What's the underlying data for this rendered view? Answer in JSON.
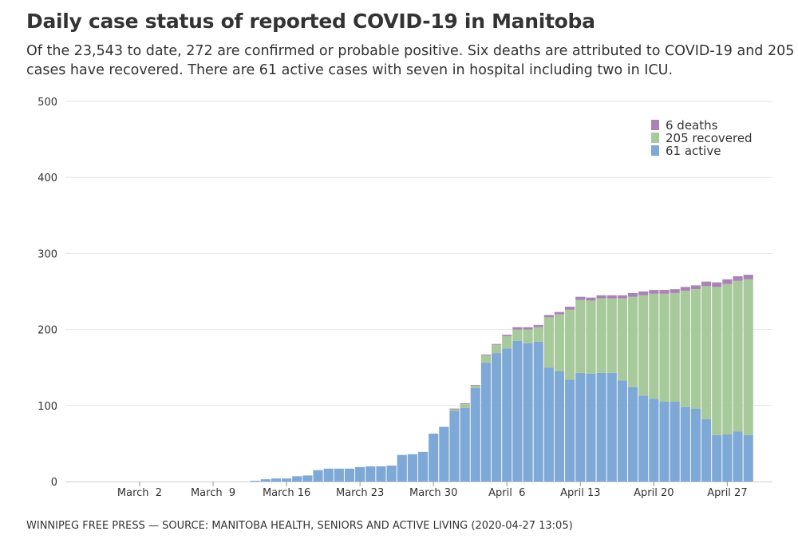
{
  "title": "Daily case status of reported COVID-19 in Manitoba",
  "subtitle": {
    "line1": "Of the 23,543 to date, 272 are confirmed or probable positive. Six deaths are attributed to COVID-19 and 205",
    "line2": "cases have recovered. There are 61 active cases with seven in hospital including two in ICU."
  },
  "footer": "WINNIPEG FREE PRESS — SOURCE: MANITOBA HEALTH, SENIORS AND ACTIVE LIVING (2020-04-27 13:05)",
  "colors": {
    "active": "#7ea9d6",
    "recovered": "#a8c99b",
    "deaths": "#a983b4",
    "grid": "#e6e6e6",
    "axis": "#cccccc"
  },
  "chart_data": {
    "type": "bar",
    "stacked": true,
    "title": "Daily case status of reported COVID-19 in Manitoba",
    "xlabel": "",
    "ylabel": "",
    "ylim": [
      0,
      500
    ],
    "yticks": [
      0,
      100,
      200,
      300,
      400,
      500
    ],
    "grid": true,
    "legend_position": "top-right",
    "start_date": "2020-02-25",
    "x_tick_labels": [
      {
        "label": "March  2",
        "day_index": 6
      },
      {
        "label": "March  9",
        "day_index": 13
      },
      {
        "label": "March 16",
        "day_index": 20
      },
      {
        "label": "March 23",
        "day_index": 27
      },
      {
        "label": "March 30",
        "day_index": 34
      },
      {
        "label": "April  6",
        "day_index": 41
      },
      {
        "label": "April 13",
        "day_index": 48
      },
      {
        "label": "April 20",
        "day_index": 55
      },
      {
        "label": "April 27",
        "day_index": 62
      }
    ],
    "series": [
      {
        "name": "61 active",
        "key": "active",
        "values": [
          0,
          0,
          0,
          0,
          0,
          0,
          0,
          0,
          0,
          0,
          0,
          0,
          0,
          0,
          0,
          0,
          0,
          1,
          3,
          4,
          4,
          7,
          8,
          15,
          17,
          17,
          17,
          19,
          20,
          20,
          21,
          35,
          36,
          39,
          63,
          72,
          93,
          97,
          123,
          156,
          169,
          175,
          185,
          182,
          184,
          150,
          145,
          134,
          143,
          142,
          143,
          143,
          133,
          124,
          113,
          109,
          105,
          105,
          98,
          96,
          82,
          61,
          62,
          66,
          61
        ]
      },
      {
        "name": "205 recovered",
        "key": "recovered",
        "values": [
          0,
          0,
          0,
          0,
          0,
          0,
          0,
          0,
          0,
          0,
          0,
          0,
          0,
          0,
          0,
          0,
          0,
          0,
          0,
          0,
          0,
          0,
          0,
          0,
          0,
          0,
          0,
          0,
          0,
          0,
          0,
          0,
          0,
          0,
          0,
          0,
          2,
          5,
          3,
          10,
          11,
          16,
          15,
          18,
          19,
          66,
          75,
          92,
          96,
          96,
          98,
          98,
          108,
          119,
          132,
          138,
          142,
          143,
          153,
          157,
          175,
          195,
          198,
          198,
          205
        ]
      },
      {
        "name": "6 deaths",
        "key": "deaths",
        "values": [
          0,
          0,
          0,
          0,
          0,
          0,
          0,
          0,
          0,
          0,
          0,
          0,
          0,
          0,
          0,
          0,
          0,
          0,
          0,
          0,
          0,
          0,
          0,
          0,
          0,
          0,
          0,
          0,
          0,
          0,
          0,
          0,
          0,
          0,
          0,
          0,
          1,
          1,
          1,
          1,
          1,
          2,
          3,
          3,
          3,
          3,
          3,
          4,
          4,
          4,
          4,
          4,
          4,
          5,
          5,
          5,
          5,
          5,
          5,
          5,
          6,
          6,
          6,
          6,
          6
        ]
      }
    ],
    "legend": [
      "6 deaths",
      "205 recovered",
      "61 active"
    ]
  }
}
